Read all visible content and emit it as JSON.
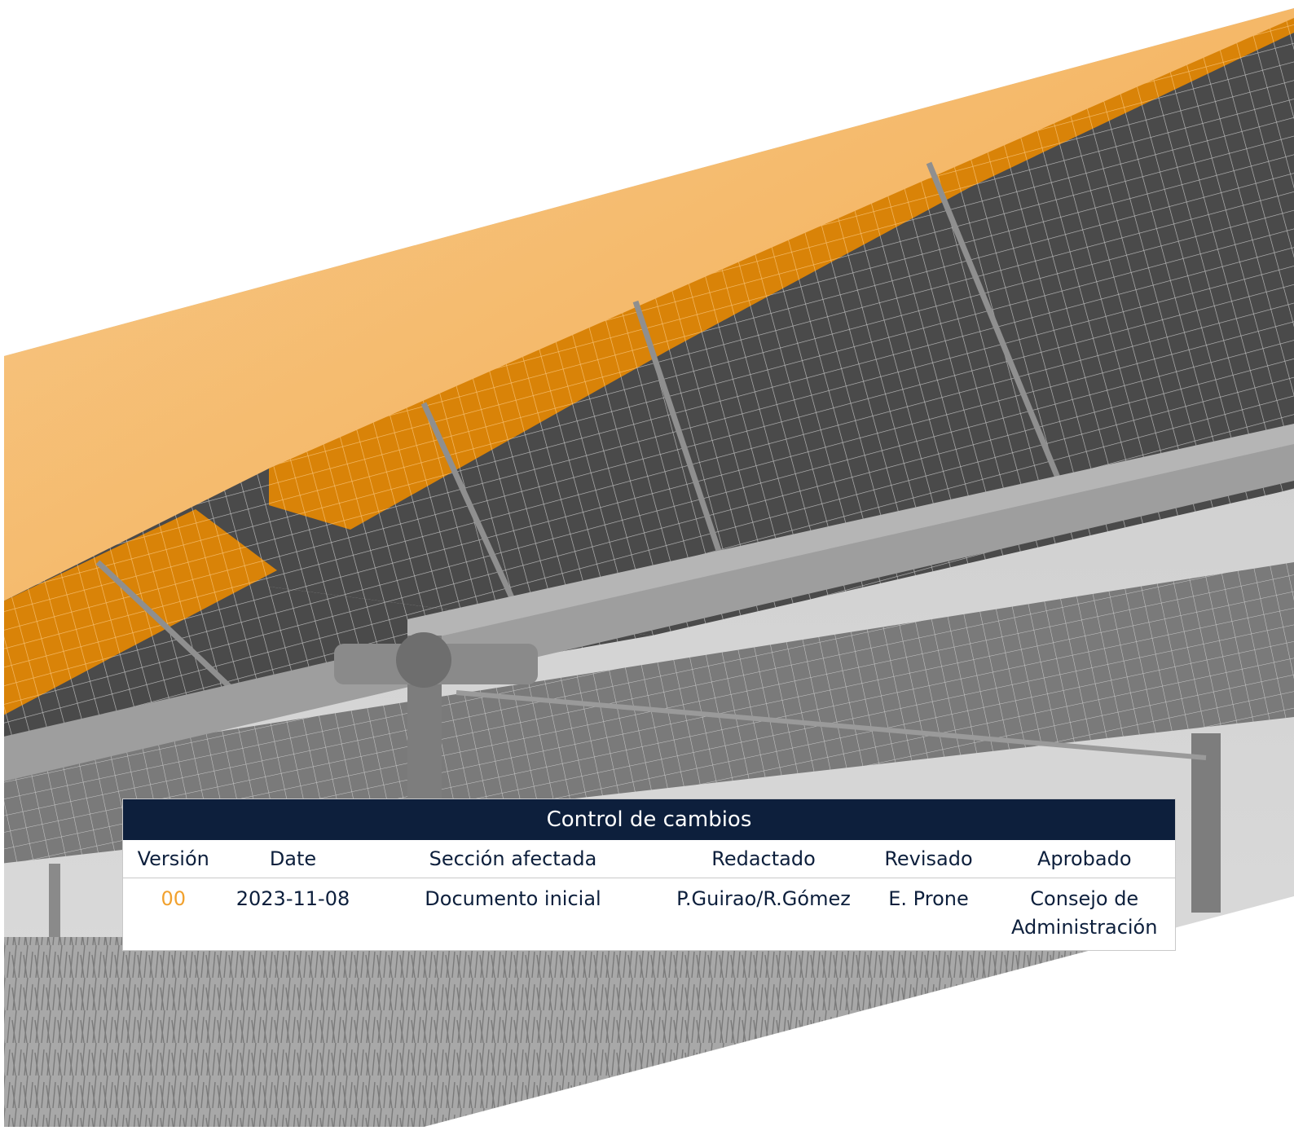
{
  "colors": {
    "navy": "#0d1f3c",
    "orange": "#f1a12e",
    "panel_dark": "#555555",
    "panel_light": "#9a9a9a"
  },
  "cover_image": {
    "subject": "photo-solar-tracker-panels"
  },
  "change_control": {
    "title": "Control de cambios",
    "columns": [
      "Versión",
      "Date",
      "Sección afectada",
      "Redactado",
      "Revisado",
      "Aprobado"
    ],
    "rows": [
      {
        "version": "00",
        "date": "2023-11-08",
        "section": "Documento inicial",
        "drafted": "P.Guirao/R.Gómez",
        "reviewed": "E. Prone",
        "approved": "Consejo de Administración"
      }
    ]
  }
}
